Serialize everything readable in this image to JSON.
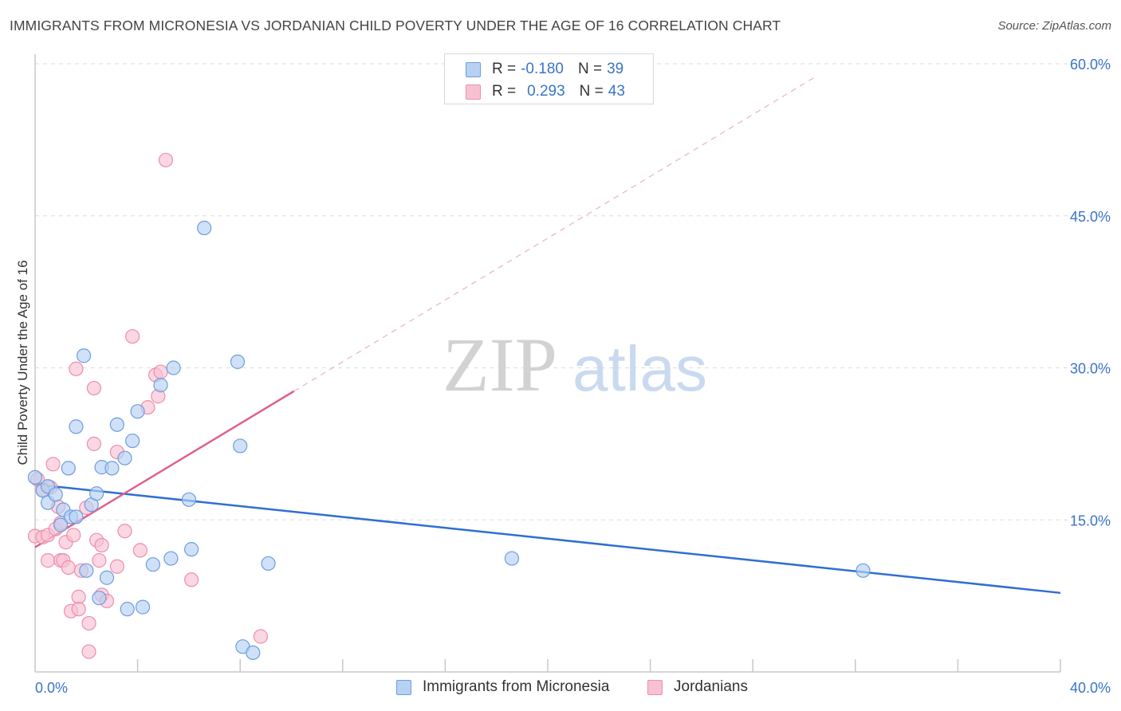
{
  "title": "IMMIGRANTS FROM MICRONESIA VS JORDANIAN CHILD POVERTY UNDER THE AGE OF 16 CORRELATION CHART",
  "source": "Source: ZipAtlas.com",
  "watermark": {
    "zip": "ZIP",
    "atlas": "atlas"
  },
  "colors": {
    "blue_fill": "#b7d1f3",
    "blue_stroke": "#6c9de0",
    "blue_line": "#2f6fd1",
    "pink_fill": "#f8c1d2",
    "pink_stroke": "#ee8eab",
    "pink_line": "#e0608a",
    "axis_text": "#3a74c8",
    "grid": "#dddddd"
  },
  "legend": {
    "rows": [
      {
        "r_label": "R =",
        "r_value": "-0.180",
        "n_label": "N =",
        "n_value": "39"
      },
      {
        "r_label": "R =",
        "r_value": "0.293",
        "n_label": "N =",
        "n_value": "43"
      }
    ]
  },
  "chart_data": {
    "type": "scatter",
    "title": "IMMIGRANTS FROM MICRONESIA VS JORDANIAN CHILD POVERTY UNDER THE AGE OF 16 CORRELATION CHART",
    "xlabel": "",
    "ylabel": "Child Poverty Under the Age of 16",
    "xlim": [
      0,
      40
    ],
    "ylim": [
      0,
      60
    ],
    "x_tick_labels": [
      "0.0%",
      "40.0%"
    ],
    "y_ticks": [
      15,
      30,
      45,
      60
    ],
    "y_tick_labels": [
      "15.0%",
      "30.0%",
      "45.0%",
      "60.0%"
    ],
    "series": [
      {
        "name": "Immigrants from Micronesia",
        "r": -0.18,
        "n": 39,
        "trend": {
          "x": [
            0,
            40
          ],
          "y": [
            18.5,
            7.8
          ]
        },
        "points": [
          [
            0.0,
            19.2
          ],
          [
            0.3,
            17.9
          ],
          [
            0.5,
            18.3
          ],
          [
            0.5,
            16.7
          ],
          [
            0.8,
            17.5
          ],
          [
            1.0,
            14.5
          ],
          [
            1.1,
            16.0
          ],
          [
            1.3,
            20.1
          ],
          [
            1.4,
            15.3
          ],
          [
            1.6,
            24.2
          ],
          [
            1.6,
            15.3
          ],
          [
            1.9,
            31.2
          ],
          [
            2.0,
            10.0
          ],
          [
            2.2,
            16.5
          ],
          [
            2.4,
            17.6
          ],
          [
            2.5,
            7.3
          ],
          [
            2.6,
            20.2
          ],
          [
            2.8,
            9.3
          ],
          [
            3.0,
            20.1
          ],
          [
            3.2,
            24.4
          ],
          [
            3.5,
            21.1
          ],
          [
            3.6,
            6.2
          ],
          [
            3.8,
            22.8
          ],
          [
            4.0,
            25.7
          ],
          [
            4.2,
            6.4
          ],
          [
            4.6,
            10.6
          ],
          [
            4.9,
            28.3
          ],
          [
            5.3,
            11.2
          ],
          [
            5.4,
            30.0
          ],
          [
            6.0,
            17.0
          ],
          [
            6.6,
            43.8
          ],
          [
            6.1,
            12.1
          ],
          [
            7.9,
            30.6
          ],
          [
            8.0,
            22.3
          ],
          [
            8.1,
            2.5
          ],
          [
            8.5,
            1.9
          ],
          [
            9.1,
            10.7
          ],
          [
            18.6,
            11.2
          ],
          [
            32.3,
            10.0
          ]
        ]
      },
      {
        "name": "Jordanians",
        "r": 0.293,
        "n": 43,
        "trend": {
          "x": [
            0,
            10.1
          ],
          "y": [
            12.3,
            27.7
          ]
        },
        "trend_dashed": {
          "x": [
            10.1,
            30.5
          ],
          "y": [
            27.7,
            58.8
          ]
        },
        "points": [
          [
            0.0,
            13.4
          ],
          [
            0.1,
            19.0
          ],
          [
            0.3,
            18.0
          ],
          [
            0.3,
            13.3
          ],
          [
            0.5,
            13.5
          ],
          [
            0.5,
            11.0
          ],
          [
            0.6,
            18.2
          ],
          [
            0.7,
            20.5
          ],
          [
            0.8,
            14.1
          ],
          [
            0.9,
            16.3
          ],
          [
            1.0,
            14.7
          ],
          [
            1.0,
            11.0
          ],
          [
            1.1,
            11.0
          ],
          [
            1.2,
            12.8
          ],
          [
            1.3,
            10.3
          ],
          [
            1.4,
            6.0
          ],
          [
            1.5,
            13.5
          ],
          [
            1.6,
            29.9
          ],
          [
            1.7,
            7.4
          ],
          [
            1.7,
            6.2
          ],
          [
            1.8,
            10.0
          ],
          [
            2.0,
            16.2
          ],
          [
            2.1,
            4.8
          ],
          [
            2.1,
            2.0
          ],
          [
            2.3,
            22.5
          ],
          [
            2.3,
            28.0
          ],
          [
            2.4,
            13.0
          ],
          [
            2.5,
            11.0
          ],
          [
            2.6,
            12.5
          ],
          [
            2.6,
            7.6
          ],
          [
            2.8,
            7.0
          ],
          [
            3.2,
            21.7
          ],
          [
            3.2,
            10.4
          ],
          [
            3.5,
            13.9
          ],
          [
            3.8,
            33.1
          ],
          [
            4.1,
            12.0
          ],
          [
            4.4,
            26.1
          ],
          [
            4.7,
            29.3
          ],
          [
            4.8,
            27.2
          ],
          [
            4.9,
            29.6
          ],
          [
            5.1,
            50.5
          ],
          [
            6.1,
            9.1
          ],
          [
            8.8,
            3.5
          ]
        ]
      }
    ]
  }
}
